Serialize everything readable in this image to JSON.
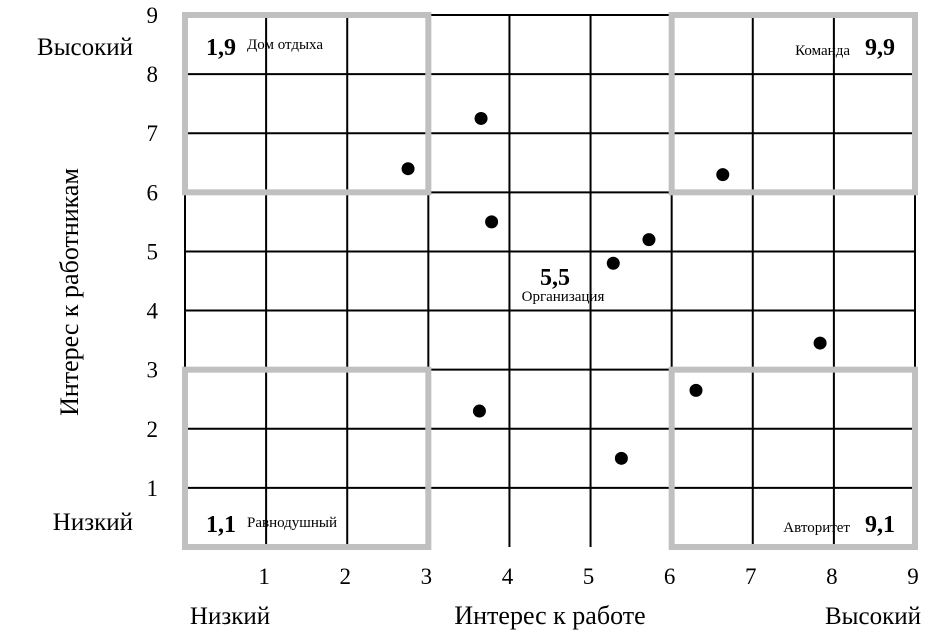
{
  "chart_data": {
    "type": "scatter",
    "xlabel": "Интерес к работе",
    "ylabel": "Интерес к работникам",
    "xlim": [
      0,
      9
    ],
    "ylim": [
      0,
      9
    ],
    "x_ticks": [
      "1",
      "2",
      "3",
      "4",
      "5",
      "6",
      "7",
      "8",
      "9"
    ],
    "y_ticks": [
      "1",
      "2",
      "3",
      "4",
      "5",
      "6",
      "7",
      "8",
      "9"
    ],
    "x_low_label": "Низкий",
    "x_high_label": "Высокий",
    "y_low_label": "Низкий",
    "y_high_label": "Высокий",
    "grid": true,
    "zones": [
      {
        "code": "1,9",
        "name": "Дом отдыха",
        "x": [
          0,
          3
        ],
        "y": [
          6,
          9
        ],
        "label_corner": "top-left"
      },
      {
        "code": "9,9",
        "name": "Команда",
        "x": [
          6,
          9
        ],
        "y": [
          6,
          9
        ],
        "label_corner": "top-right"
      },
      {
        "code": "1,1",
        "name": "Равнодушный",
        "x": [
          0,
          3
        ],
        "y": [
          0,
          3
        ],
        "label_corner": "bottom-left"
      },
      {
        "code": "9,1",
        "name": "Авторитет",
        "x": [
          6,
          9
        ],
        "y": [
          0,
          3
        ],
        "label_corner": "bottom-right"
      },
      {
        "code": "5,5",
        "name": "Организация",
        "x": [
          3,
          6
        ],
        "y": [
          3,
          6
        ],
        "label_corner": "center"
      }
    ],
    "points": [
      {
        "x": 2.75,
        "y": 6.4
      },
      {
        "x": 3.65,
        "y": 7.25
      },
      {
        "x": 3.78,
        "y": 5.5
      },
      {
        "x": 5.28,
        "y": 4.8
      },
      {
        "x": 5.72,
        "y": 5.2
      },
      {
        "x": 6.63,
        "y": 6.3
      },
      {
        "x": 7.83,
        "y": 3.45
      },
      {
        "x": 6.3,
        "y": 2.65
      },
      {
        "x": 3.63,
        "y": 2.3
      },
      {
        "x": 5.38,
        "y": 1.5
      }
    ]
  }
}
